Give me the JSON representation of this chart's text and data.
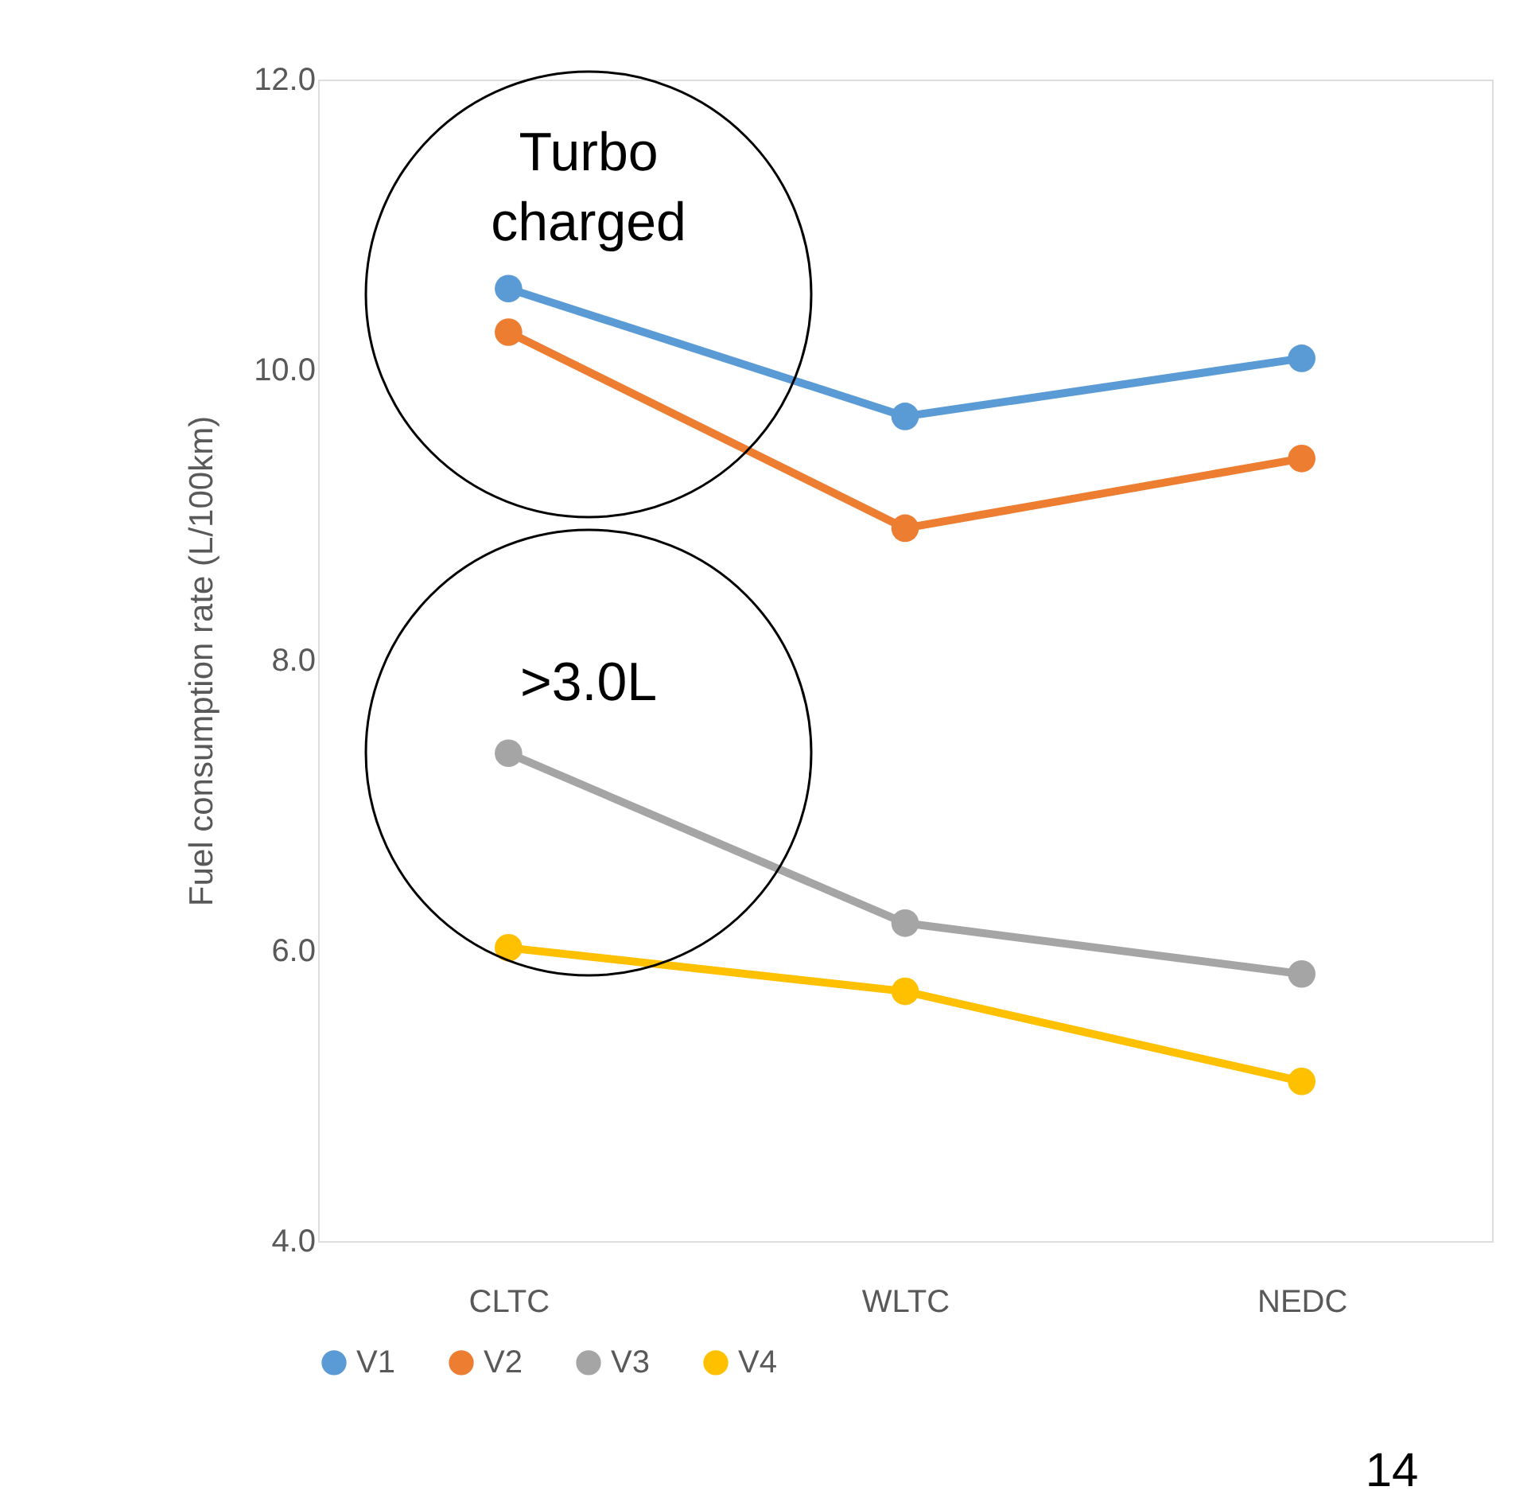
{
  "chart_data": {
    "type": "line",
    "ylabel": "Fuel consumption rate (L/100km)",
    "categories": [
      "CLTC",
      "WLTC",
      "NEDC"
    ],
    "series": [
      {
        "name": "V1",
        "color": "#5b9bd5",
        "values": [
          10.56,
          9.68,
          10.08
        ]
      },
      {
        "name": "V2",
        "color": "#ed7d31",
        "values": [
          10.26,
          8.91,
          9.39
        ]
      },
      {
        "name": "V3",
        "color": "#a5a5a5",
        "values": [
          7.36,
          6.19,
          5.84
        ]
      },
      {
        "name": "V4",
        "color": "#ffc000",
        "values": [
          6.02,
          5.72,
          5.1
        ]
      }
    ],
    "ylim": [
      4,
      12
    ],
    "yticks": [
      {
        "value": 4,
        "label": "4.0"
      },
      {
        "value": 6,
        "label": "6.0"
      },
      {
        "value": 8,
        "label": "8.0"
      },
      {
        "value": 10,
        "label": "10.0"
      },
      {
        "value": 12,
        "label": "12.0"
      }
    ],
    "annotations": [
      "Turbo charged",
      ">3.0L",
      "14"
    ],
    "marker": "circle",
    "line_style": "solid",
    "grid": false,
    "legend": "bottom"
  }
}
